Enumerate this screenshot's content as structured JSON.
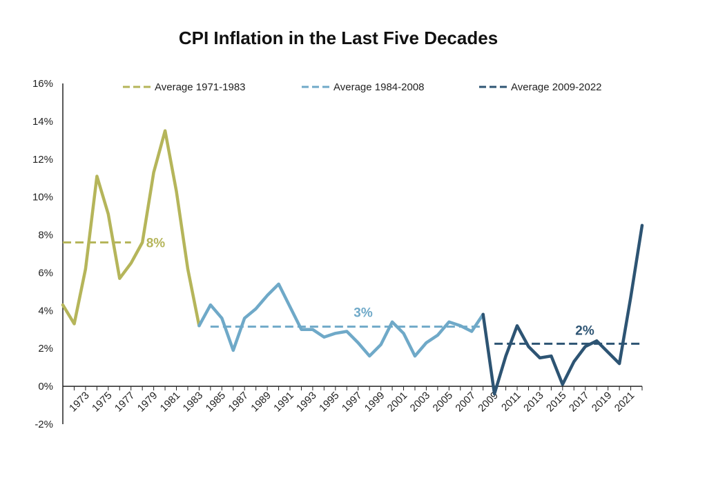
{
  "chart_data": {
    "type": "line",
    "title": "CPI Inflation in the Last Five Decades",
    "xlabel": "",
    "ylabel": "",
    "ylim": [
      -2,
      16
    ],
    "y_ticks": [
      "-2%",
      "0%",
      "2%",
      "4%",
      "6%",
      "8%",
      "10%",
      "12%",
      "14%",
      "16%"
    ],
    "x_range": [
      1971,
      2022
    ],
    "x_tick_labels": [
      "1973",
      "1975",
      "1977",
      "1979",
      "1981",
      "1983",
      "1985",
      "1987",
      "1989",
      "1991",
      "1993",
      "1995",
      "1997",
      "1999",
      "2001",
      "2003",
      "2005",
      "2007",
      "2009",
      "2011",
      "2013",
      "2015",
      "2017",
      "2019",
      "2021"
    ],
    "grid": false,
    "legend_position": "top",
    "series": [
      {
        "name": "1971-1983",
        "color": "#b5b55a",
        "x": [
          1971,
          1972,
          1973,
          1974,
          1975,
          1976,
          1977,
          1978,
          1979,
          1980,
          1981,
          1982,
          1983
        ],
        "values": [
          4.3,
          3.3,
          6.2,
          11.1,
          9.1,
          5.7,
          6.5,
          7.6,
          11.3,
          13.5,
          10.3,
          6.2,
          3.2
        ]
      },
      {
        "name": "1984-2008",
        "color": "#6fa9c8",
        "x": [
          1983,
          1984,
          1985,
          1986,
          1987,
          1988,
          1989,
          1990,
          1991,
          1992,
          1993,
          1994,
          1995,
          1996,
          1997,
          1998,
          1999,
          2000,
          2001,
          2002,
          2003,
          2004,
          2005,
          2006,
          2007,
          2008
        ],
        "values": [
          3.2,
          4.3,
          3.6,
          1.9,
          3.6,
          4.1,
          4.8,
          5.4,
          4.2,
          3.0,
          3.0,
          2.6,
          2.8,
          2.9,
          2.3,
          1.6,
          2.2,
          3.4,
          2.8,
          1.6,
          2.3,
          2.7,
          3.4,
          3.2,
          2.9,
          3.8
        ]
      },
      {
        "name": "2009-2022",
        "color": "#2d5473",
        "x": [
          2008,
          2009,
          2010,
          2011,
          2012,
          2013,
          2014,
          2015,
          2016,
          2017,
          2018,
          2019,
          2020,
          2021,
          2022
        ],
        "values": [
          3.8,
          -0.4,
          1.6,
          3.2,
          2.1,
          1.5,
          1.6,
          0.1,
          1.3,
          2.1,
          2.4,
          1.8,
          1.2,
          4.7,
          8.5
        ]
      }
    ],
    "averages": [
      {
        "legend": "Average 1971-1983",
        "label": "8%",
        "value": 7.6,
        "from": 1971,
        "to": 1977,
        "color": "#b5b55a"
      },
      {
        "legend": "Average 1984-2008",
        "label": "3%",
        "value": 3.15,
        "from": 1984,
        "to": 2008,
        "color": "#6fa9c8"
      },
      {
        "legend": "Average 2009-2022",
        "label": "2%",
        "value": 2.25,
        "from": 2009,
        "to": 2022,
        "color": "#2d5473"
      }
    ]
  }
}
